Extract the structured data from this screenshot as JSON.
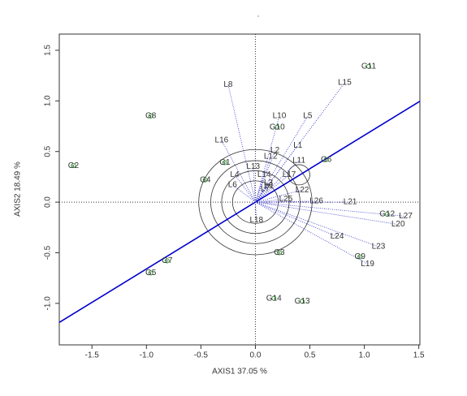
{
  "chart_data": {
    "type": "biplot",
    "title": ".",
    "x_label": "AXIS1 37.05 %",
    "y_label": "AXIS2 18.49 %",
    "xlim": [
      -1.8,
      1.51
    ],
    "ylim": [
      -1.41,
      1.66
    ],
    "xticks": [
      -1.5,
      {
        "value": -1,
        "label": "-1.0"
      },
      -0.5,
      {
        "value": 0,
        "label": "0.0"
      },
      0.5,
      {
        "value": 1,
        "label": "1.0"
      },
      1.5
    ],
    "yticks": [
      {
        "value": -1,
        "label": "-1.0"
      },
      -0.5,
      {
        "value": 0,
        "label": "0.0"
      },
      0.5,
      {
        "value": 1,
        "label": "1.0"
      },
      1.5
    ],
    "points": {
      "color": "#2ca02c",
      "labels": [
        "G11",
        "G8",
        "G2",
        "G10",
        "G6",
        "G1",
        "G4",
        "G12",
        "G9",
        "G3",
        "G7",
        "G5",
        "G14",
        "G13"
      ],
      "x": [
        1.04,
        -0.96,
        -1.67,
        0.2,
        0.65,
        -0.28,
        -0.46,
        1.21,
        0.96,
        0.22,
        -0.81,
        -0.96,
        0.17,
        0.43
      ],
      "y": [
        1.34,
        0.85,
        0.36,
        0.74,
        0.42,
        0.39,
        0.22,
        -0.12,
        -0.54,
        -0.5,
        -0.58,
        -0.7,
        -0.95,
        -0.98
      ]
    },
    "vectors": {
      "color": "#3333cc",
      "labels": [
        "L15",
        "L8",
        "L10",
        "L5",
        "L16",
        "L1",
        "L2",
        "L12",
        "L11",
        "L13",
        "L4",
        "L14",
        "L17",
        "L6",
        "L3",
        "L9",
        "L7",
        "L22",
        "L25",
        "L26",
        "L21",
        "L18",
        "L27",
        "L20",
        "L24",
        "L23",
        "L19"
      ],
      "x": [
        0.82,
        -0.25,
        0.22,
        0.48,
        -0.31,
        0.39,
        0.18,
        0.14,
        0.4,
        -0.02,
        -0.19,
        0.08,
        0.31,
        -0.21,
        0.12,
        0.12,
        0.09,
        0.43,
        0.28,
        0.56,
        0.87,
        0.01,
        1.38,
        1.31,
        0.75,
        1.13,
        1.03
      ],
      "y": [
        1.18,
        1.16,
        0.85,
        0.85,
        0.61,
        0.56,
        0.51,
        0.45,
        0.41,
        0.35,
        0.27,
        0.27,
        0.27,
        0.17,
        0.19,
        0.16,
        0.13,
        0.12,
        0.03,
        0.01,
        0.0,
        -0.18,
        -0.14,
        -0.22,
        -0.34,
        -0.44,
        -0.61
      ]
    },
    "aea_line": {
      "color": "#0000cd",
      "slope": 0.66
    },
    "circles": [
      {
        "cx": 0,
        "cy": 0,
        "r": 0.52
      },
      {
        "cx": 0,
        "cy": 0,
        "r": 0.41
      },
      {
        "cx": 0,
        "cy": 0,
        "r": 0.31
      },
      {
        "cx": 0,
        "cy": 0,
        "r": 0.21
      },
      {
        "cx": 0.4,
        "cy": 0.27,
        "r": 0.1
      }
    ]
  }
}
